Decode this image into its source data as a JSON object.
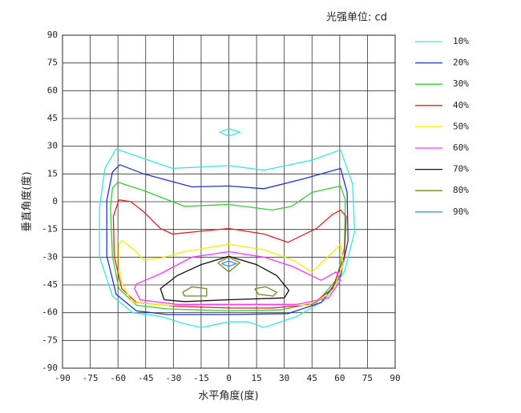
{
  "chart_data": {
    "type": "contour",
    "title": "光强单位: cd",
    "x_label": "水平角度(度)",
    "y_label": "垂直角度(度)",
    "xlim": [
      -90,
      90
    ],
    "ylim": [
      -90,
      90
    ],
    "xticks": [
      -90,
      -75,
      -60,
      -45,
      -30,
      -15,
      0,
      15,
      30,
      45,
      60,
      75,
      90
    ],
    "yticks": [
      -90,
      -75,
      -60,
      -45,
      -30,
      -15,
      0,
      15,
      30,
      45,
      60,
      75,
      90
    ],
    "grid": true,
    "legend": "right",
    "series": [
      {
        "name": "10%",
        "color": "#33e6e6",
        "x": [
          -61,
          -48,
          -30.6,
          0,
          19,
          45,
          60.5,
          67,
          68,
          62.5,
          52,
          37,
          19,
          10.6,
          0,
          -15,
          -24,
          -37,
          -52,
          -63,
          -70,
          -70,
          -67,
          -61,
          null,
          -5,
          0,
          6,
          0,
          -5
        ],
        "y": [
          28.5,
          24,
          18,
          19.5,
          17,
          22.5,
          28,
          9.5,
          -16.5,
          -38,
          -53,
          -62,
          -68,
          -65,
          -65,
          -68,
          -66,
          -62,
          -60,
          -51,
          -29.5,
          -3.5,
          18,
          28.5,
          null,
          37.5,
          39.5,
          37.5,
          35.5,
          37.5
        ]
      },
      {
        "name": "20%",
        "color": "#2233cc",
        "x": [
          -59,
          -46,
          -20,
          0,
          19,
          41,
          60.5,
          64,
          64.5,
          60.5,
          50,
          32,
          0,
          -33,
          -50,
          -61,
          -66,
          -66,
          -63,
          -59
        ],
        "y": [
          20,
          15,
          8,
          8.5,
          7,
          12.5,
          18,
          5,
          -21,
          -40,
          -54.5,
          -60.5,
          -61,
          -61,
          -59,
          -50,
          -29.5,
          1,
          16,
          20
        ]
      },
      {
        "name": "30%",
        "color": "#33cc33",
        "x": [
          -60,
          -46,
          -24,
          0,
          23.5,
          34,
          45,
          60.5,
          63,
          62.5,
          58,
          47.5,
          28,
          0,
          -33,
          -50,
          -59.5,
          -63,
          -64,
          -63,
          -60
        ],
        "y": [
          10.5,
          6,
          -2.5,
          -1.5,
          -4.5,
          -2.5,
          5,
          8.5,
          1,
          -25,
          -42.5,
          -54.5,
          -58.5,
          -59,
          -58,
          -56,
          -47,
          -29.5,
          -3.5,
          7.5,
          10.5
        ]
      },
      {
        "name": "40%",
        "color": "#dd2222",
        "x": [
          -59.5,
          -53,
          -46,
          -37,
          -30.5,
          0,
          19,
          32,
          39,
          47.5,
          56,
          60.5,
          63.5,
          62.5,
          56,
          45,
          23.5,
          0,
          -28,
          -50,
          -58,
          -62,
          -62.5,
          -59.5
        ],
        "y": [
          1,
          0,
          -5.5,
          -14.5,
          -17.5,
          -14.5,
          -17.5,
          -22,
          -18.5,
          -14.5,
          -7,
          -4.5,
          -8,
          -29.5,
          -47,
          -55.5,
          -57.5,
          -57.5,
          -56.5,
          -54.5,
          -47,
          -29.5,
          -8,
          1
        ]
      },
      {
        "name": "50%",
        "color": "#f0f000",
        "x": [
          -59.5,
          -57.5,
          -50,
          -46,
          -37,
          -24,
          0,
          19,
          34.5,
          45,
          56,
          60.5,
          62,
          56,
          43,
          0,
          -33,
          -52,
          -58,
          -59.5,
          -59.5
        ],
        "y": [
          -23,
          -21,
          -27,
          -31.5,
          -30.5,
          -27,
          -23,
          -26,
          -31.5,
          -38,
          -27.5,
          -23,
          -34,
          -49,
          -56,
          -56,
          -56,
          -54.5,
          -44.5,
          -34,
          -23
        ]
      },
      {
        "name": "60%",
        "color": "#ff33ff",
        "x": [
          -50,
          -37,
          -20,
          0,
          19,
          34.5,
          50,
          58,
          60.5,
          54,
          37,
          0,
          -28,
          -48,
          -51,
          -50
        ],
        "y": [
          -44.5,
          -39,
          -30,
          -27,
          -30,
          -35,
          -42.5,
          -38,
          -42.5,
          -52,
          -55.5,
          -55.5,
          -55.5,
          -53,
          -47,
          -44.5
        ]
      },
      {
        "name": "70%",
        "color": "#111111",
        "x": [
          -35,
          -37,
          -28,
          -15,
          0,
          15,
          26,
          32.5,
          30,
          0,
          -24,
          -35
        ],
        "y": [
          -53,
          -47,
          -40,
          -34,
          -29.5,
          -34,
          -40,
          -48,
          -52,
          -53,
          -54,
          -53
        ]
      },
      {
        "name": "80%",
        "color": "#808020",
        "x": [
          -6,
          0,
          6,
          0,
          -6,
          null,
          -25,
          -20,
          -12,
          -12,
          -24,
          -25,
          null,
          14,
          20,
          26,
          24,
          16,
          14
        ],
        "y": [
          -33,
          -30,
          -33,
          -38,
          -33,
          null,
          -49,
          -46,
          -47,
          -51,
          -51,
          -49,
          null,
          -47,
          -46,
          -49,
          -51,
          -50,
          -47
        ]
      },
      {
        "name": "90%",
        "color": "#3399ee",
        "x": [
          -4,
          0,
          4,
          0,
          -4
        ],
        "y": [
          -33.5,
          -32,
          -33.5,
          -35,
          -33.5
        ]
      }
    ]
  }
}
